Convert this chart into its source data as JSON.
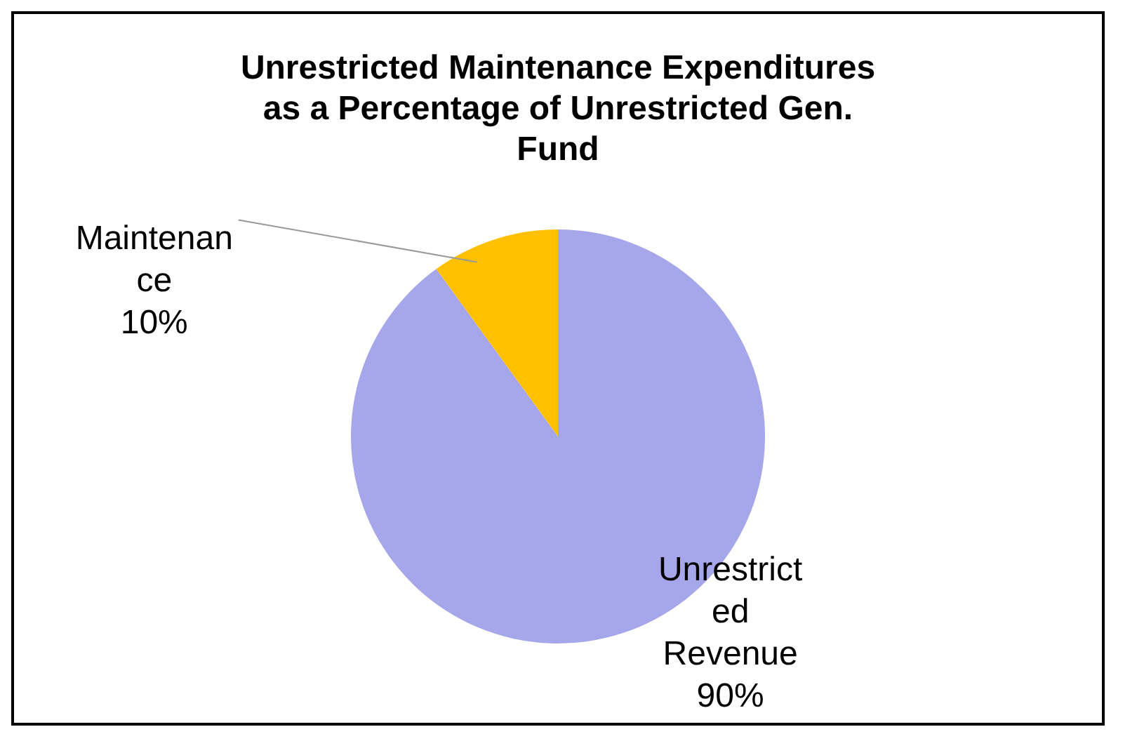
{
  "chart_data": {
    "type": "pie",
    "title": "Unrestricted Maintenance Expenditures as a Percentage of Unrestricted Gen. Fund",
    "categories": [
      "Unrestricted Revenue",
      "Maintenance"
    ],
    "values": [
      90,
      10
    ],
    "value_labels": [
      "90%",
      "10%"
    ],
    "colors": [
      "#a6a6ea",
      "#ffc000"
    ],
    "legend": false
  }
}
